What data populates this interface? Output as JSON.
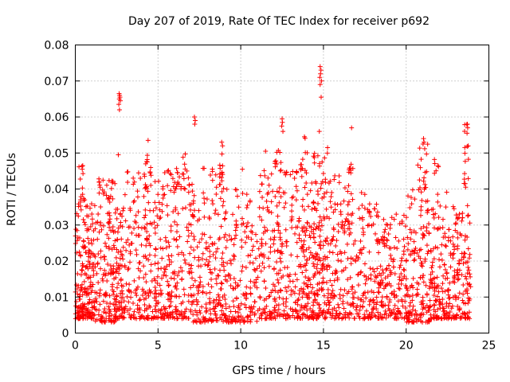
{
  "chart_data": {
    "type": "scatter",
    "title": "Day 207 of 2019, Rate Of TEC Index for receiver p692",
    "xlabel": "GPS time / hours",
    "ylabel": "ROTI / TECUs",
    "xlim": [
      0,
      25
    ],
    "ylim": [
      0,
      0.08
    ],
    "xticks": [
      0,
      5,
      10,
      15,
      20,
      25
    ],
    "xtick_labels": [
      "0",
      "5",
      "10",
      "15",
      "20",
      "25"
    ],
    "yticks": [
      0,
      0.01,
      0.02,
      0.03,
      0.04,
      0.05,
      0.06,
      0.07,
      0.08
    ],
    "ytick_labels": [
      "0",
      "0.01",
      "0.02",
      "0.03",
      "0.04",
      "0.05",
      "0.06",
      "0.07",
      "0.08"
    ],
    "grid": true,
    "marker": "+",
    "series": [
      {
        "name": "ROTI",
        "color": "#ff0000",
        "clusters": [
          {
            "x0": 0.0,
            "x1": 1.2,
            "lo": 0.004,
            "hi": 0.036,
            "n": 200
          },
          {
            "x0": 0.2,
            "x1": 0.6,
            "lo": 0.036,
            "hi": 0.047,
            "n": 12
          },
          {
            "x0": 1.2,
            "x1": 2.4,
            "lo": 0.003,
            "hi": 0.043,
            "n": 150
          },
          {
            "x0": 2.4,
            "x1": 3.0,
            "lo": 0.004,
            "hi": 0.035,
            "n": 90
          },
          {
            "x0": 3.0,
            "x1": 5.0,
            "lo": 0.004,
            "hi": 0.045,
            "n": 190
          },
          {
            "x0": 4.2,
            "x1": 4.6,
            "lo": 0.04,
            "hi": 0.054,
            "n": 14
          },
          {
            "x0": 5.0,
            "x1": 7.0,
            "lo": 0.004,
            "hi": 0.047,
            "n": 200
          },
          {
            "x0": 6.0,
            "x1": 6.8,
            "lo": 0.04,
            "hi": 0.05,
            "n": 16
          },
          {
            "x0": 7.0,
            "x1": 9.0,
            "lo": 0.003,
            "hi": 0.046,
            "n": 200
          },
          {
            "x0": 8.7,
            "x1": 9.0,
            "lo": 0.04,
            "hi": 0.053,
            "n": 10
          },
          {
            "x0": 9.0,
            "x1": 11.0,
            "lo": 0.003,
            "hi": 0.04,
            "n": 170
          },
          {
            "x0": 11.0,
            "x1": 13.0,
            "lo": 0.004,
            "hi": 0.046,
            "n": 190
          },
          {
            "x0": 12.0,
            "x1": 12.5,
            "lo": 0.045,
            "hi": 0.051,
            "n": 10
          },
          {
            "x0": 13.0,
            "x1": 14.3,
            "lo": 0.004,
            "hi": 0.045,
            "n": 150
          },
          {
            "x0": 13.6,
            "x1": 14.1,
            "lo": 0.045,
            "hi": 0.055,
            "n": 10
          },
          {
            "x0": 14.3,
            "x1": 15.3,
            "lo": 0.004,
            "hi": 0.05,
            "n": 160
          },
          {
            "x0": 15.3,
            "x1": 17.0,
            "lo": 0.004,
            "hi": 0.044,
            "n": 160
          },
          {
            "x0": 16.5,
            "x1": 16.8,
            "lo": 0.043,
            "hi": 0.048,
            "n": 8
          },
          {
            "x0": 17.0,
            "x1": 18.5,
            "lo": 0.004,
            "hi": 0.036,
            "n": 140
          },
          {
            "x0": 18.5,
            "x1": 20.0,
            "lo": 0.004,
            "hi": 0.033,
            "n": 140
          },
          {
            "x0": 20.0,
            "x1": 21.5,
            "lo": 0.003,
            "hi": 0.04,
            "n": 170
          },
          {
            "x0": 20.7,
            "x1": 21.3,
            "lo": 0.04,
            "hi": 0.054,
            "n": 16
          },
          {
            "x0": 21.5,
            "x1": 22.5,
            "lo": 0.004,
            "hi": 0.04,
            "n": 110
          },
          {
            "x0": 21.7,
            "x1": 22.0,
            "lo": 0.044,
            "hi": 0.049,
            "n": 6
          },
          {
            "x0": 22.5,
            "x1": 23.9,
            "lo": 0.004,
            "hi": 0.036,
            "n": 150
          },
          {
            "x0": 23.5,
            "x1": 23.8,
            "lo": 0.04,
            "hi": 0.058,
            "n": 14
          }
        ],
        "points": [
          [
            2.65,
            0.0665
          ],
          [
            2.68,
            0.066
          ],
          [
            2.7,
            0.0655
          ],
          [
            2.66,
            0.065
          ],
          [
            2.72,
            0.0645
          ],
          [
            2.63,
            0.0635
          ],
          [
            2.67,
            0.062
          ],
          [
            2.6,
            0.0495
          ],
          [
            7.2,
            0.06
          ],
          [
            7.25,
            0.059
          ],
          [
            7.22,
            0.058
          ],
          [
            12.5,
            0.0595
          ],
          [
            12.52,
            0.0585
          ],
          [
            12.48,
            0.0575
          ],
          [
            12.55,
            0.056
          ],
          [
            13.85,
            0.0545
          ],
          [
            11.5,
            0.0505
          ],
          [
            10.1,
            0.0455
          ],
          [
            14.8,
            0.074
          ],
          [
            14.85,
            0.073
          ],
          [
            14.82,
            0.072
          ],
          [
            14.78,
            0.071
          ],
          [
            14.88,
            0.07
          ],
          [
            14.8,
            0.069
          ],
          [
            14.86,
            0.0655
          ],
          [
            14.75,
            0.056
          ],
          [
            15.25,
            0.0515
          ],
          [
            16.7,
            0.057
          ],
          [
            23.7,
            0.058
          ],
          [
            23.72,
            0.057
          ],
          [
            23.68,
            0.0555
          ],
          [
            23.75,
            0.052
          ],
          [
            21.05,
            0.054
          ],
          [
            21.08,
            0.053
          ],
          [
            21.02,
            0.0525
          ],
          [
            4.4,
            0.0535
          ],
          [
            8.85,
            0.053
          ],
          [
            8.9,
            0.052
          ],
          [
            0.45,
            0.0465
          ],
          [
            0.42,
            0.0455
          ],
          [
            1.45,
            0.042
          ],
          [
            1.5,
            0.0405
          ],
          [
            3.5,
            0.043
          ],
          [
            5.8,
            0.044
          ],
          [
            9.8,
            0.038
          ],
          [
            17.3,
            0.039
          ],
          [
            17.5,
            0.0385
          ],
          [
            18.1,
            0.0345
          ],
          [
            19.4,
            0.033
          ],
          [
            22.4,
            0.035
          ]
        ]
      }
    ]
  }
}
